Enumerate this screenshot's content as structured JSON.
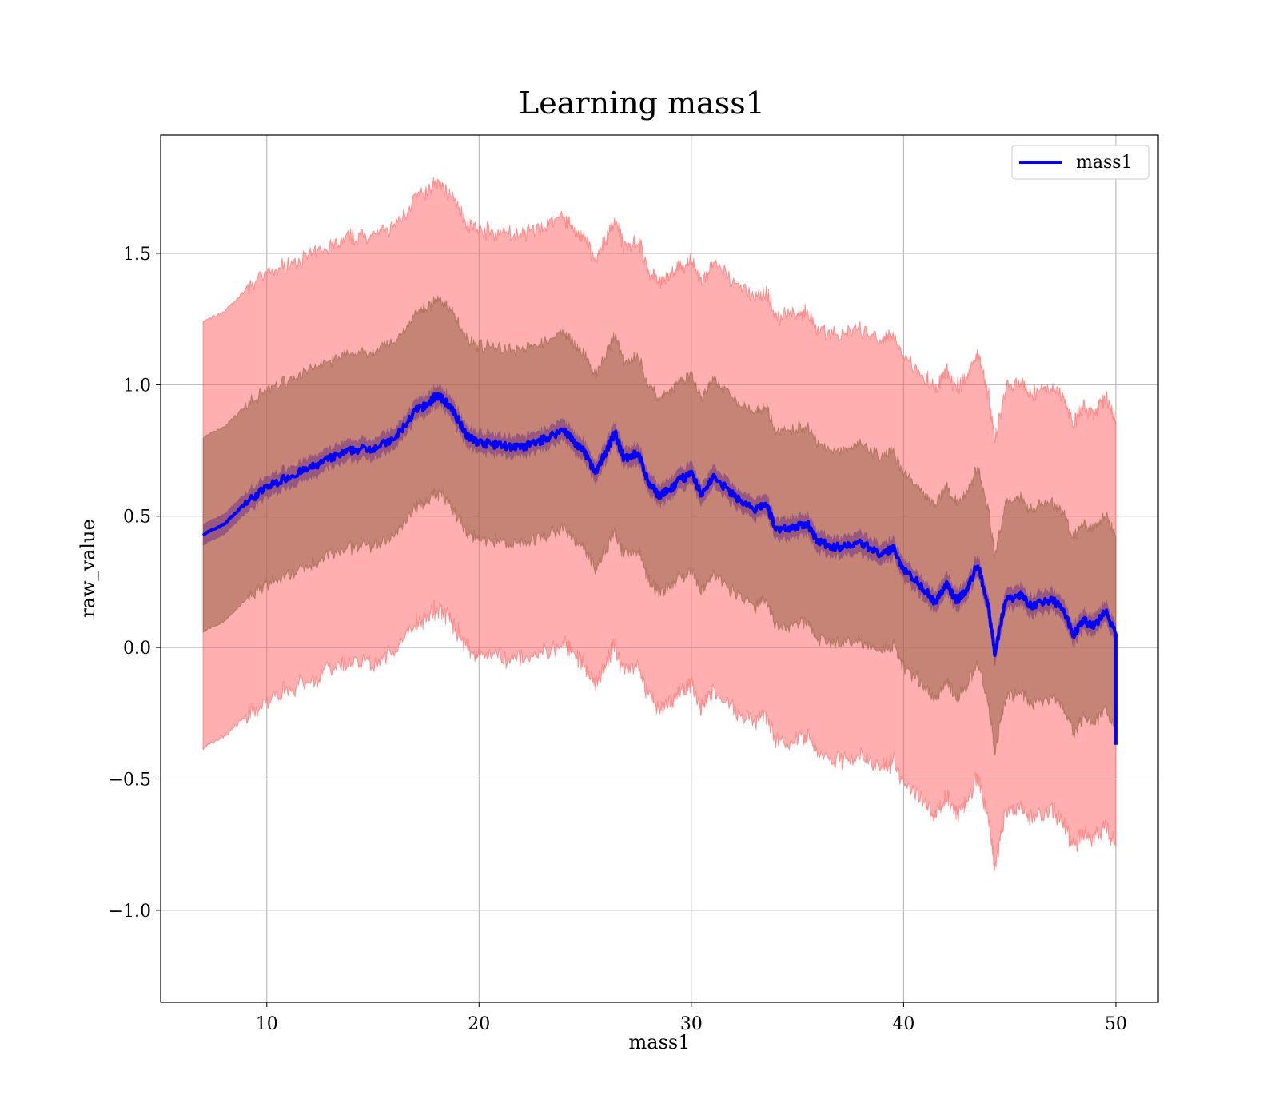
{
  "chart_data": {
    "type": "line",
    "title": "Learning mass1",
    "xlabel": "mass1",
    "ylabel": "raw_value",
    "xlim": [
      5,
      52
    ],
    "ylim": [
      -1.35,
      1.95
    ],
    "xticks": [
      10,
      20,
      30,
      40,
      50
    ],
    "xtick_labels": [
      "10",
      "20",
      "30",
      "40",
      "50"
    ],
    "yticks": [
      -1.0,
      -0.5,
      0.0,
      0.5,
      1.0,
      1.5
    ],
    "ytick_labels": [
      "−1.0",
      "−0.5",
      "0.0",
      "0.5",
      "1.0",
      "1.5"
    ],
    "grid": true,
    "legend_position": "top-right",
    "series": [
      {
        "name": "mass1",
        "color": "#0000ff",
        "x": [
          7.0,
          8.0,
          9.0,
          10.0,
          11.0,
          12.0,
          13.0,
          14.0,
          15.0,
          16.0,
          17.0,
          17.5,
          18.0,
          18.5,
          19.0,
          19.5,
          20.0,
          21.0,
          22.0,
          23.0,
          24.0,
          24.5,
          25.0,
          25.5,
          26.0,
          26.4,
          26.8,
          27.5,
          28.0,
          28.5,
          29.0,
          29.5,
          30.0,
          30.5,
          31.0,
          32.0,
          33.0,
          33.5,
          34.0,
          35.0,
          35.5,
          36.0,
          37.0,
          38.0,
          39.0,
          39.5,
          40.0,
          41.0,
          41.5,
          42.0,
          42.5,
          43.0,
          43.5,
          44.0,
          44.3,
          44.8,
          45.5,
          46.0,
          47.0,
          47.5,
          48.0,
          48.5,
          49.0,
          49.5,
          50.0
        ],
        "mean": [
          0.43,
          0.47,
          0.55,
          0.61,
          0.65,
          0.68,
          0.72,
          0.75,
          0.76,
          0.79,
          0.9,
          0.92,
          0.96,
          0.93,
          0.87,
          0.8,
          0.78,
          0.77,
          0.76,
          0.79,
          0.83,
          0.78,
          0.74,
          0.66,
          0.75,
          0.82,
          0.72,
          0.74,
          0.62,
          0.58,
          0.6,
          0.64,
          0.66,
          0.58,
          0.65,
          0.58,
          0.52,
          0.55,
          0.45,
          0.46,
          0.47,
          0.4,
          0.38,
          0.4,
          0.35,
          0.38,
          0.3,
          0.22,
          0.17,
          0.24,
          0.18,
          0.22,
          0.32,
          0.15,
          -0.02,
          0.18,
          0.2,
          0.16,
          0.18,
          0.15,
          0.05,
          0.1,
          0.08,
          0.14,
          0.05
        ],
        "band_inner_halfwidth": 0.37,
        "band_outer_halfwidth": 0.81,
        "end_drop": -0.37
      }
    ]
  },
  "colors": {
    "outer_band": "#ff6060",
    "inner_band": "#8b5a3c",
    "core_band": "#6a2a8a",
    "mean_line": "#0000ff",
    "grid": "#b0b0b0"
  }
}
